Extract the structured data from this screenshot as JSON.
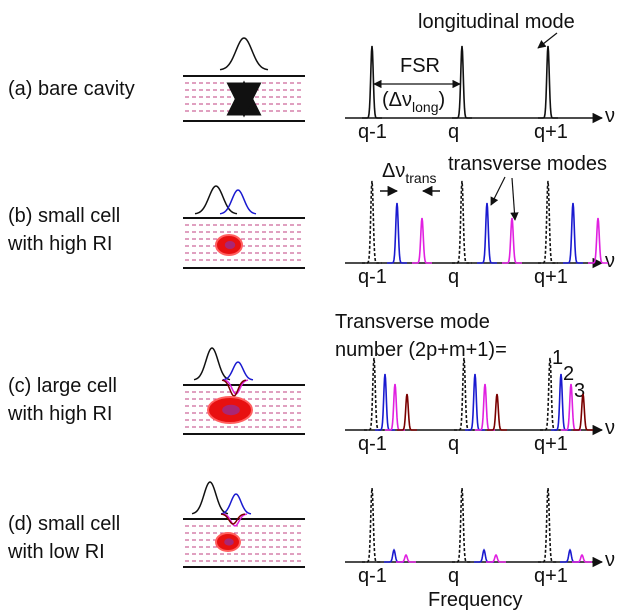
{
  "panels": [
    {
      "label": [
        "(a) bare cavity"
      ],
      "ticks": [
        "q-1",
        "q",
        "q+1"
      ],
      "axis_symbol": "ν"
    },
    {
      "label": [
        "(b) small cell",
        "with high RI"
      ],
      "ticks": [
        "q-1",
        "q",
        "q+1"
      ],
      "axis_symbol": "ν"
    },
    {
      "label": [
        "(c) large cell",
        "with high RI"
      ],
      "ticks": [
        "q-1",
        "q",
        "q+1"
      ],
      "axis_symbol": "ν"
    },
    {
      "label": [
        "(d) small cell",
        "with low RI"
      ],
      "ticks": [
        "q-1",
        "q",
        "q+1"
      ],
      "axis_symbol": "ν"
    }
  ],
  "annotations": {
    "longitudinal_mode": "longitudinal mode",
    "fsr": "FSR",
    "fsr_symbol": {
      "open": "(Δν",
      "sub": "long",
      "close": ")"
    },
    "trans_spacing": {
      "symbol": "Δν",
      "sub": "trans"
    },
    "transverse_modes": "transverse modes",
    "mode_number": [
      "Transverse mode",
      "number (2p+m+1)="
    ],
    "mode_indices": [
      "1",
      "2",
      "3"
    ]
  },
  "x_axis_title": "Frequency"
}
